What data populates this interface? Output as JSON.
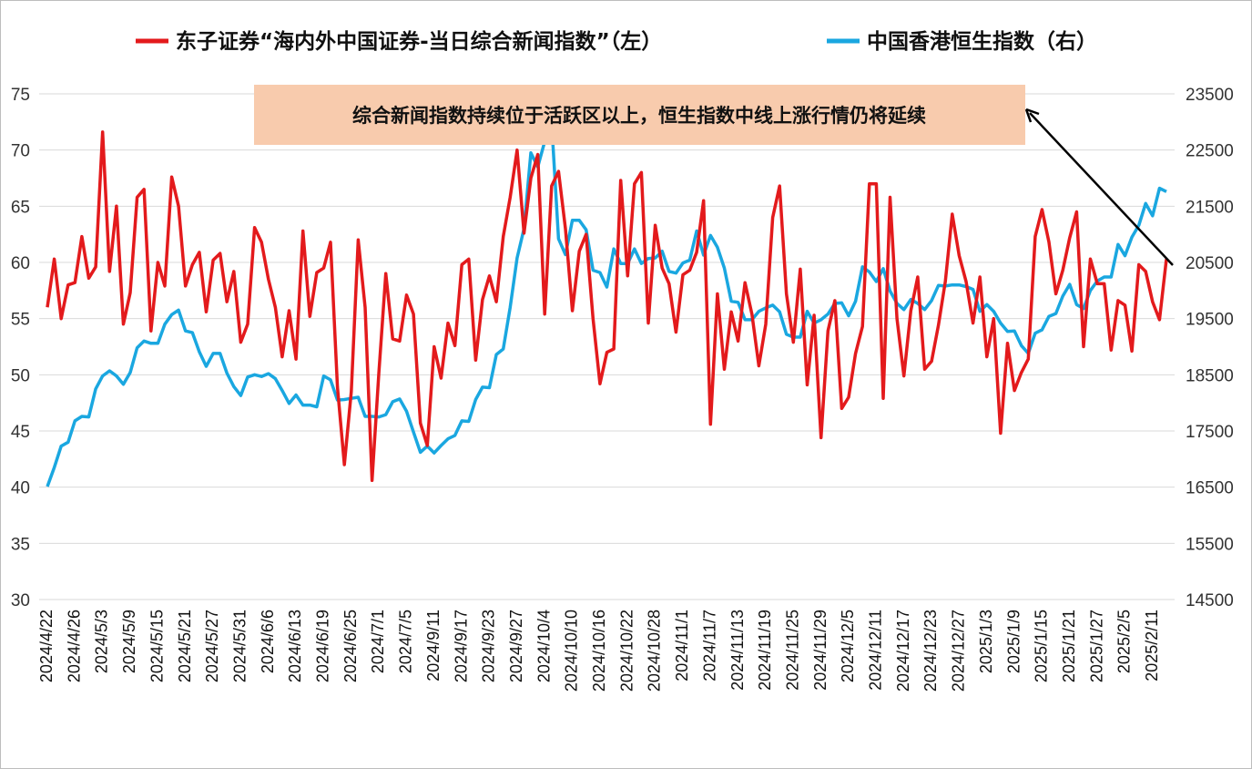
{
  "chart_data": {
    "type": "line",
    "series": [
      {
        "name": "东子证券“海内外中国证券-当日综合新闻指数”（左）",
        "axis": "left",
        "color": "#e31a1c",
        "values": [
          56,
          60.3,
          55,
          58,
          58.2,
          62.3,
          58.6,
          59.6,
          71.6,
          59.2,
          65,
          54.5,
          57.3,
          65.8,
          66.5,
          53.9,
          60,
          57.9,
          67.6,
          65,
          57.9,
          59.8,
          60.9,
          55.6,
          60.2,
          60.8,
          56.5,
          59.2,
          52.9,
          54.5,
          63.1,
          61.8,
          58.5,
          56,
          51.6,
          55.7,
          51.4,
          62.8,
          55.2,
          59.1,
          59.5,
          61.8,
          48.9,
          42,
          48.5,
          62,
          56,
          40.6,
          50.2,
          59,
          53.2,
          53,
          57.1,
          55.4,
          45.7,
          43.7,
          52.5,
          49.7,
          54.6,
          52.6,
          59.8,
          60.3,
          51.3,
          56.7,
          58.8,
          56.5,
          62.3,
          65.8,
          70,
          62.6,
          67.5,
          69.6,
          55.4,
          66.8,
          68.1,
          63,
          55.7,
          61,
          62.5,
          55,
          49.2,
          52,
          52.3,
          67.3,
          58.8,
          67,
          68,
          54.6,
          63.3,
          59.5,
          58.1,
          53.8,
          58.9,
          59.3,
          60.9,
          65.5,
          45.6,
          57.2,
          50.5,
          55.6,
          53,
          58.2,
          55.4,
          50.8,
          54.5,
          64,
          66.8,
          57.2,
          52.9,
          59.4,
          49.1,
          55.3,
          44.4,
          53.9,
          56.6,
          47,
          48,
          51.9,
          54.3,
          67,
          67,
          47.9,
          65.8,
          55,
          49.9,
          55.7,
          58.7,
          50.5,
          51.2,
          54.4,
          58.3,
          64.3,
          60.6,
          58.3,
          54.6,
          58.7,
          51.6,
          55,
          44.8,
          52.8,
          48.6,
          50.2,
          51.4,
          62.3,
          64.7,
          61.8,
          57.2,
          59.3,
          62.2,
          64.5,
          52.5,
          60.3,
          58.1,
          58.1,
          52.2,
          56.6,
          56.2,
          52.1,
          59.8,
          59.2,
          56.5,
          54.9,
          60.3
        ],
        "ylim": [
          30,
          75
        ]
      },
      {
        "name": "中国香港恒生指数（右）",
        "axis": "right",
        "color": "#1aa7e0",
        "values": [
          16510,
          16850,
          17230,
          17300,
          17680,
          17760,
          17750,
          18250,
          18480,
          18570,
          18480,
          18330,
          18540,
          18980,
          19100,
          19060,
          19060,
          19400,
          19570,
          19650,
          19280,
          19250,
          18910,
          18650,
          18880,
          18880,
          18530,
          18290,
          18130,
          18460,
          18500,
          18470,
          18520,
          18430,
          18220,
          17990,
          18140,
          17960,
          17960,
          17930,
          18480,
          18410,
          18050,
          18060,
          18080,
          18100,
          17760,
          17760,
          17750,
          17790,
          18020,
          18070,
          17850,
          17480,
          17120,
          17230,
          17110,
          17240,
          17360,
          17420,
          17680,
          17670,
          18060,
          18280,
          18270,
          18860,
          18960,
          19700,
          20580,
          21100,
          22450,
          22200,
          22650,
          23000,
          20920,
          20640,
          21250,
          21250,
          21080,
          20360,
          20320,
          20060,
          20740,
          20480,
          20480,
          20740,
          20480,
          20570,
          20580,
          20700,
          20340,
          20310,
          20490,
          20540,
          21060,
          20630,
          20980,
          20770,
          20400,
          19810,
          19790,
          19480,
          19480,
          19630,
          19690,
          19740,
          19620,
          19220,
          19170,
          19170,
          19630,
          19420,
          19480,
          19580,
          19770,
          19780,
          19550,
          19810,
          20420,
          20330,
          20160,
          20390,
          19990,
          19770,
          19660,
          19840,
          19770,
          19660,
          19820,
          20090,
          20080,
          20100,
          20100,
          20070,
          20020,
          19630,
          19750,
          19630,
          19420,
          19270,
          19280,
          19020,
          18880,
          19240,
          19300,
          19540,
          19590,
          19900,
          20110,
          19750,
          19680,
          20000,
          20170,
          20240,
          20240,
          20820,
          20620,
          20950,
          21160,
          21550,
          21330,
          21820,
          21760
        ],
        "ylim": [
          14500,
          23500
        ]
      }
    ],
    "x_tick_labels": [
      "2024/4/22",
      "2024/4/26",
      "2024/5/3",
      "2024/5/9",
      "2024/5/15",
      "2024/5/21",
      "2024/5/27",
      "2024/5/31",
      "2024/6/6",
      "2024/6/13",
      "2024/6/19",
      "2024/6/25",
      "2024/7/1",
      "2024/7/5",
      "2024/9/11",
      "2024/9/17",
      "2024/9/23",
      "2024/9/27",
      "2024/10/4",
      "2024/10/10",
      "2024/10/16",
      "2024/10/22",
      "2024/10/28",
      "2024/11/1",
      "2024/11/7",
      "2024/11/13",
      "2024/11/19",
      "2024/11/25",
      "2024/11/29",
      "2024/12/5",
      "2024/12/11",
      "2024/12/17",
      "2024/12/23",
      "2024/12/27",
      "2025/1/3",
      "2025/1/9",
      "2025/1/15",
      "2025/1/21",
      "2025/1/27",
      "2025/2/5",
      "2025/2/11"
    ],
    "y_left_ticks": [
      "30",
      "35",
      "40",
      "45",
      "50",
      "55",
      "60",
      "65",
      "70",
      "75"
    ],
    "y_right_ticks": [
      "14500",
      "15500",
      "16500",
      "17500",
      "18500",
      "19500",
      "20500",
      "21500",
      "22500",
      "23500"
    ],
    "legend_position": "top",
    "annotation": "综合新闻指数持续位于活跃区以上，恒生指数中线上涨行情仍将延续",
    "grid": "horizontal"
  },
  "colors": {
    "annotation_bg": "#f8cbad",
    "grid": "#d9d9d9",
    "arrow": "#000000"
  }
}
